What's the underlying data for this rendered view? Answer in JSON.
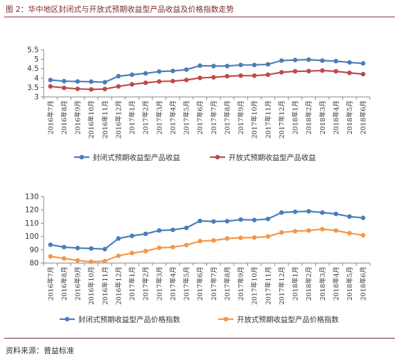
{
  "figure": {
    "title": "图 2：华中地区封闭式与开放式预期收益型产品收益及价格指数走势",
    "source": "资料来源：普益标准"
  },
  "colors": {
    "rule": "#7a2b2b",
    "closed_1": "#4a7ebb",
    "open_1": "#be4b48",
    "closed_2": "#4a7ebb",
    "open_2": "#f79646",
    "axis": "#868686"
  },
  "chart_data": [
    {
      "type": "line",
      "title": "",
      "xlabel": "",
      "ylabel": "",
      "ylim": [
        3,
        5.5
      ],
      "yticks": [
        3,
        3.5,
        4,
        4.5,
        5,
        5.5
      ],
      "ytick_labels": [
        "3",
        "3.5",
        "4",
        "4.5",
        "5",
        "5.5"
      ],
      "grid": false,
      "legend_position": "bottom",
      "categories": [
        "2016年7月",
        "2016年8月",
        "2016年9月",
        "2016年10月",
        "2016年11月",
        "2016年12月",
        "2017年1月",
        "2017年2月",
        "2017年3月",
        "2017年4月",
        "2017年5月",
        "2017年6月",
        "2017年7月",
        "2017年8月",
        "2017年9月",
        "2017年10月",
        "2017年11月",
        "2017年12月",
        "2018年1月",
        "2018年2月",
        "2018年3月",
        "2018年4月",
        "2018年5月",
        "2018年6月"
      ],
      "series": [
        {
          "name": "封闭式预期收益型产品收益",
          "color": "#4a7ebb",
          "values": [
            3.9,
            3.84,
            3.82,
            3.81,
            3.78,
            4.1,
            4.18,
            4.25,
            4.35,
            4.38,
            4.45,
            4.66,
            4.64,
            4.64,
            4.7,
            4.7,
            4.73,
            4.93,
            4.96,
            4.98,
            4.93,
            4.9,
            4.83,
            4.78
          ]
        },
        {
          "name": "开放式预期收益型产品收益",
          "color": "#be4b48",
          "values": [
            3.56,
            3.48,
            3.43,
            3.4,
            3.42,
            3.56,
            3.67,
            3.75,
            3.82,
            3.84,
            3.9,
            4.01,
            4.04,
            4.1,
            4.13,
            4.13,
            4.18,
            4.31,
            4.36,
            4.37,
            4.4,
            4.36,
            4.28,
            4.21
          ]
        }
      ]
    },
    {
      "type": "line",
      "title": "",
      "xlabel": "",
      "ylabel": "",
      "ylim": [
        80,
        130
      ],
      "yticks": [
        80,
        90,
        100,
        110,
        120,
        130
      ],
      "ytick_labels": [
        "80",
        "90",
        "100",
        "110",
        "120",
        "130"
      ],
      "grid": false,
      "legend_position": "bottom",
      "categories": [
        "2016年7月",
        "2016年8月",
        "2016年9月",
        "2016年10月",
        "2016年11月",
        "2016年12月",
        "2017年1月",
        "2017年2月",
        "2017年3月",
        "2017年4月",
        "2017年5月",
        "2017年6月",
        "2017年7月",
        "2017年8月",
        "2017年9月",
        "2017年10月",
        "2017年11月",
        "2017年12月",
        "2018年1月",
        "2018年2月",
        "2018年3月",
        "2018年4月",
        "2018年5月",
        "2018年6月"
      ],
      "series": [
        {
          "name": "封闭式预期收益型产品价格指数",
          "color": "#4a7ebb",
          "values": [
            93.8,
            92,
            91.3,
            91,
            90.5,
            98.5,
            100.5,
            102,
            104.5,
            105,
            106.5,
            111.7,
            111.3,
            111.5,
            112.7,
            112.4,
            113.2,
            118,
            118.6,
            119,
            118,
            117,
            115,
            114
          ]
        },
        {
          "name": "开放式预期收益型产品价格指数",
          "color": "#f79646",
          "values": [
            85,
            83.5,
            82,
            81,
            81.5,
            85.5,
            87.5,
            89,
            91.5,
            92,
            93.5,
            96.5,
            97,
            98.5,
            99,
            99.2,
            100,
            103,
            104,
            104.5,
            105.5,
            104.5,
            102.5,
            101
          ]
        }
      ]
    }
  ]
}
